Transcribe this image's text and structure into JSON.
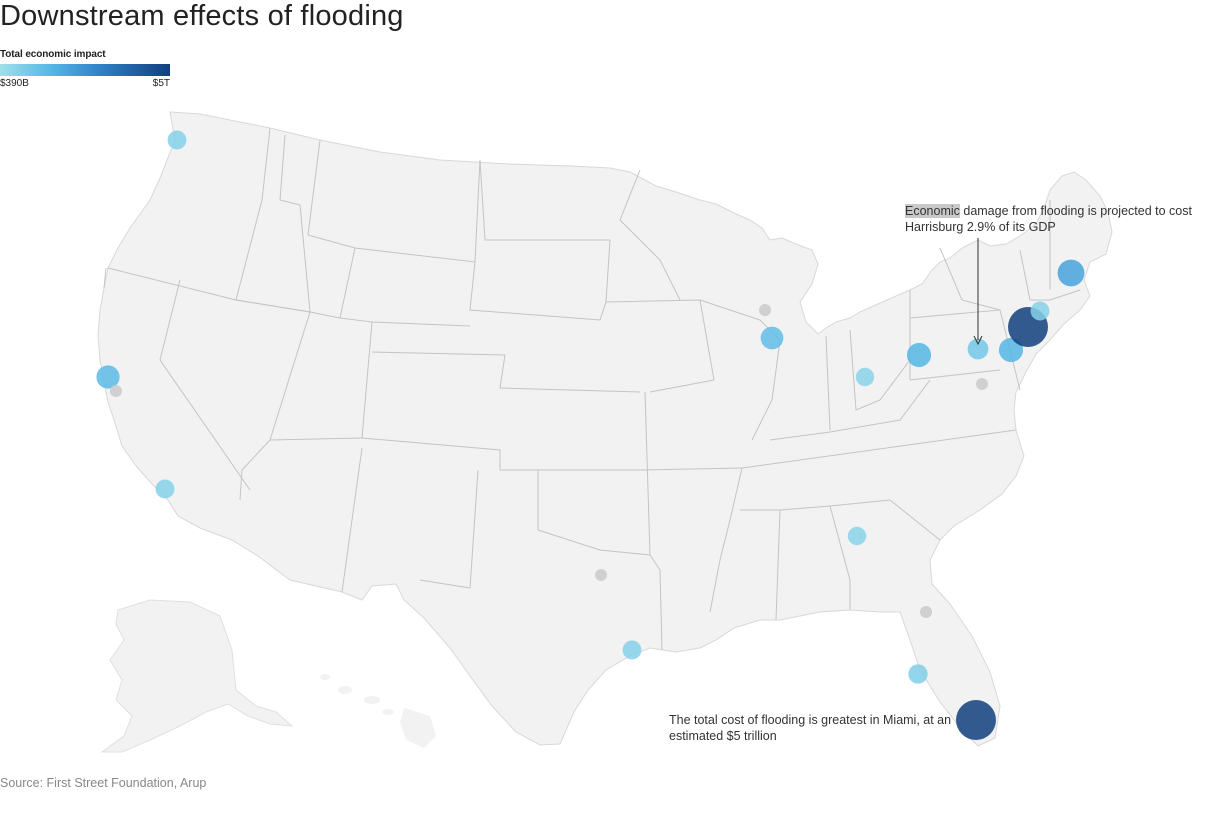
{
  "title": "Downstream effects of flooding",
  "legend": {
    "title": "Total economic impact",
    "min_label": "$390B",
    "max_label": "$5T",
    "color_scale": [
      "#9fe0ea",
      "#56b7e6",
      "#2f7fc4",
      "#123f7e"
    ],
    "no_data_color": "#cccccc"
  },
  "annotations": {
    "harrisburg": {
      "highlight": "Economic",
      "text": " damage from flooding is projected to cost Harrisburg 2.9% of its GDP"
    },
    "miami": {
      "text": "The total cost of flooding is greatest in Miami, at an estimated $5 trillion"
    }
  },
  "source": "Source: First Street Foundation, Arup",
  "colors": {
    "land": "#f2f2f2",
    "borders": "#c4c4c4"
  },
  "chart_data": {
    "type": "scatter",
    "map": "United States",
    "size_and_color_by": "total economic impact",
    "range": [
      "$390B",
      "$5T"
    ],
    "points": [
      {
        "city": "Seattle",
        "lat": 47.6,
        "lon": -122.3,
        "impact_level": 0.12
      },
      {
        "city": "San Francisco",
        "lat": 37.8,
        "lon": -122.4,
        "impact_level": 0.3
      },
      {
        "city": "San Jose",
        "lat": 37.3,
        "lon": -121.9,
        "impact_level": null
      },
      {
        "city": "Los Angeles",
        "lat": 34.0,
        "lon": -118.2,
        "impact_level": 0.12
      },
      {
        "city": "Houston",
        "lat": 29.8,
        "lon": -95.4,
        "impact_level": 0.12
      },
      {
        "city": "Austin",
        "lat": 30.3,
        "lon": -97.7,
        "impact_level": null
      },
      {
        "city": "Milwaukee",
        "lat": 43.0,
        "lon": -87.9,
        "impact_level": null
      },
      {
        "city": "Chicago",
        "lat": 41.9,
        "lon": -87.6,
        "impact_level": 0.28
      },
      {
        "city": "Columbus",
        "lat": 40.0,
        "lon": -83.0,
        "impact_level": 0.1
      },
      {
        "city": "Pittsburgh",
        "lat": 40.4,
        "lon": -80.0,
        "impact_level": 0.34
      },
      {
        "city": "Harrisburg",
        "lat": 40.3,
        "lon": -76.9,
        "impact_level": 0.2
      },
      {
        "city": "Washington DC",
        "lat": 38.9,
        "lon": -77.0,
        "impact_level": null
      },
      {
        "city": "Philadelphia",
        "lat": 39.95,
        "lon": -75.2,
        "impact_level": 0.34
      },
      {
        "city": "New York",
        "lat": 40.7,
        "lon": -74.0,
        "impact_level": 1.0
      },
      {
        "city": "Hartford",
        "lat": 41.8,
        "lon": -72.7,
        "impact_level": 0.12
      },
      {
        "city": "Boston",
        "lat": 42.4,
        "lon": -71.1,
        "impact_level": 0.45
      },
      {
        "city": "Atlanta",
        "lat": 33.7,
        "lon": -84.4,
        "impact_level": 0.1
      },
      {
        "city": "Jacksonville",
        "lat": 30.3,
        "lon": -81.7,
        "impact_level": null
      },
      {
        "city": "Tampa",
        "lat": 27.95,
        "lon": -82.5,
        "impact_level": 0.14
      },
      {
        "city": "Miami",
        "lat": 25.8,
        "lon": -80.2,
        "impact_level": 1.0
      }
    ]
  }
}
